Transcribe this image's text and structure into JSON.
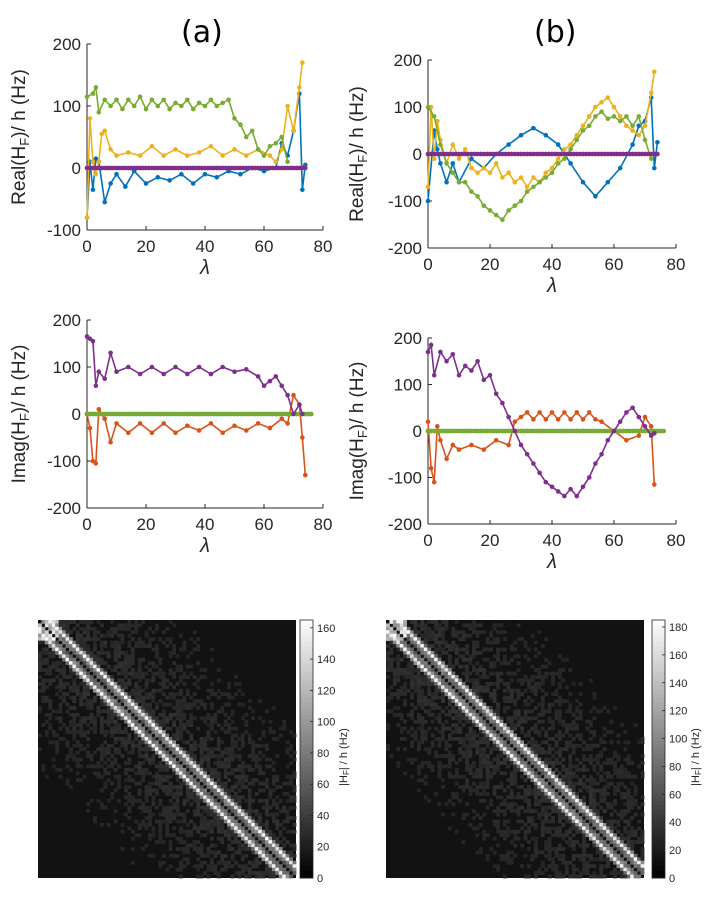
{
  "labels": {
    "a": "(a)",
    "b": "(b)"
  },
  "chart_data": [
    {
      "type": "line",
      "panel": "a-real",
      "xlabel": "λ",
      "ylabel_main": "Real(H",
      "ylabel_sub": "F",
      "ylabel_tail": ")/ h (Hz)",
      "xlim": [
        0,
        80
      ],
      "ylim": [
        -100,
        200
      ],
      "xticks": [
        0,
        20,
        40,
        60,
        80
      ],
      "yticks": [
        -100,
        0,
        100,
        200
      ],
      "series": [
        {
          "color": "#0072BD",
          "x": [
            0,
            1,
            2,
            3,
            4,
            6,
            8,
            10,
            13,
            16,
            20,
            24,
            28,
            32,
            36,
            40,
            44,
            48,
            52,
            56,
            60,
            64,
            66,
            68,
            70,
            72,
            73,
            74
          ],
          "y": [
            -80,
            10,
            -35,
            15,
            10,
            -55,
            -25,
            -10,
            -30,
            -5,
            -25,
            -15,
            -20,
            -10,
            -25,
            -10,
            -15,
            -5,
            -10,
            0,
            -5,
            0,
            40,
            20,
            60,
            120,
            -35,
            5
          ]
        },
        {
          "color": "#D95319",
          "x": [
            0,
            74
          ],
          "y": [
            0,
            0
          ]
        },
        {
          "color": "#EDB120",
          "x": [
            0,
            1,
            2,
            3,
            4,
            5,
            6,
            8,
            10,
            14,
            18,
            22,
            26,
            30,
            34,
            38,
            42,
            46,
            50,
            54,
            58,
            62,
            64,
            66,
            68,
            70,
            72,
            73
          ],
          "y": [
            -80,
            80,
            10,
            -10,
            10,
            55,
            60,
            30,
            20,
            25,
            20,
            35,
            20,
            30,
            20,
            25,
            35,
            20,
            30,
            20,
            30,
            20,
            10,
            30,
            100,
            60,
            130,
            170
          ]
        },
        {
          "color": "#77AC30",
          "x": [
            0,
            2,
            3,
            4,
            6,
            8,
            10,
            12,
            14,
            16,
            18,
            20,
            22,
            24,
            26,
            28,
            30,
            32,
            34,
            36,
            38,
            40,
            42,
            44,
            46,
            48,
            50,
            52,
            54,
            56,
            58,
            60,
            62,
            64,
            66,
            68
          ],
          "y": [
            115,
            120,
            130,
            90,
            110,
            100,
            110,
            95,
            110,
            100,
            115,
            95,
            110,
            100,
            110,
            95,
            105,
            100,
            110,
            95,
            105,
            100,
            110,
            100,
            105,
            110,
            80,
            70,
            50,
            60,
            30,
            20,
            35,
            40,
            50,
            10
          ]
        },
        {
          "color": "#7E2F8E",
          "x": [
            0,
            74
          ],
          "y": [
            0,
            0
          ]
        }
      ]
    },
    {
      "type": "line",
      "panel": "b-real",
      "xlabel": "λ",
      "ylabel_main": "Real(H",
      "ylabel_sub": "F",
      "ylabel_tail": ")/ h (Hz)",
      "xlim": [
        0,
        80
      ],
      "ylim": [
        -200,
        200
      ],
      "xticks": [
        0,
        20,
        40,
        60,
        80
      ],
      "yticks": [
        -200,
        -100,
        0,
        100,
        200
      ],
      "series": [
        {
          "color": "#0072BD",
          "x": [
            0,
            2,
            3,
            4,
            6,
            8,
            10,
            14,
            18,
            22,
            26,
            30,
            34,
            38,
            42,
            46,
            50,
            54,
            58,
            62,
            66,
            68,
            70,
            72,
            73,
            74
          ],
          "y": [
            -100,
            50,
            10,
            -20,
            -60,
            -20,
            -60,
            -10,
            -30,
            0,
            20,
            40,
            55,
            40,
            20,
            -20,
            -60,
            -90,
            -60,
            -30,
            20,
            60,
            70,
            120,
            -30,
            25
          ]
        },
        {
          "color": "#D95319",
          "x": [
            0,
            74
          ],
          "y": [
            0,
            0
          ]
        },
        {
          "color": "#EDB120",
          "x": [
            0,
            1,
            2,
            3,
            4,
            6,
            8,
            10,
            12,
            14,
            16,
            18,
            20,
            22,
            24,
            26,
            28,
            30,
            32,
            34,
            36,
            38,
            40,
            42,
            44,
            46,
            48,
            50,
            52,
            54,
            56,
            58,
            60,
            62,
            64,
            66,
            68,
            70,
            72,
            73
          ],
          "y": [
            -70,
            100,
            -10,
            70,
            30,
            -20,
            20,
            -10,
            10,
            -30,
            -40,
            -30,
            -40,
            -20,
            -50,
            -40,
            -60,
            -50,
            -70,
            -50,
            -60,
            -40,
            -30,
            -10,
            10,
            20,
            40,
            60,
            80,
            100,
            110,
            120,
            100,
            80,
            60,
            50,
            40,
            60,
            130,
            175
          ]
        },
        {
          "color": "#77AC30",
          "x": [
            0,
            2,
            4,
            6,
            8,
            10,
            12,
            14,
            16,
            18,
            20,
            22,
            24,
            26,
            28,
            30,
            32,
            34,
            36,
            38,
            40,
            42,
            44,
            46,
            48,
            50,
            52,
            54,
            56,
            58,
            60,
            62,
            64,
            66,
            68,
            70,
            72
          ],
          "y": [
            100,
            80,
            20,
            -20,
            -40,
            -60,
            -60,
            -80,
            -90,
            -110,
            -120,
            -130,
            -140,
            -120,
            -110,
            -100,
            -80,
            -70,
            -60,
            -50,
            -40,
            -20,
            -10,
            10,
            30,
            50,
            60,
            80,
            90,
            75,
            80,
            70,
            80,
            60,
            80,
            30,
            -10
          ]
        },
        {
          "color": "#7E2F8E",
          "x": [
            0,
            74
          ],
          "y": [
            0,
            0
          ]
        }
      ]
    },
    {
      "type": "line",
      "panel": "a-imag",
      "xlabel": "λ",
      "ylabel_main": "Imag(H",
      "ylabel_sub": "F",
      "ylabel_tail": ")/ h (Hz)",
      "xlim": [
        0,
        80
      ],
      "ylim": [
        -200,
        200
      ],
      "xticks": [
        0,
        20,
        40,
        60,
        80
      ],
      "yticks": [
        -200,
        -100,
        0,
        100,
        200
      ],
      "series": [
        {
          "color": "#0072BD",
          "x": [
            0,
            76
          ],
          "y": [
            0,
            0
          ]
        },
        {
          "color": "#D95319",
          "x": [
            0,
            1,
            2,
            3,
            4,
            6,
            8,
            10,
            14,
            18,
            22,
            26,
            30,
            34,
            38,
            42,
            46,
            50,
            54,
            58,
            62,
            66,
            68,
            70,
            72,
            73,
            74
          ],
          "y": [
            0,
            -30,
            -100,
            -105,
            10,
            -10,
            -60,
            -20,
            -40,
            -20,
            -40,
            -20,
            -40,
            -25,
            -35,
            -20,
            -40,
            -25,
            -35,
            -20,
            -30,
            -10,
            -20,
            40,
            20,
            -50,
            -130
          ]
        },
        {
          "color": "#77AC30",
          "x": [
            0,
            76
          ],
          "y": [
            0,
            0
          ]
        },
        {
          "color": "#7E2F8E",
          "x": [
            0,
            1,
            2,
            3,
            4,
            6,
            8,
            10,
            14,
            18,
            22,
            26,
            30,
            34,
            38,
            42,
            46,
            50,
            54,
            58,
            60,
            62,
            64,
            66,
            68,
            70,
            72,
            73
          ],
          "y": [
            165,
            160,
            155,
            60,
            90,
            75,
            130,
            90,
            100,
            85,
            100,
            85,
            100,
            85,
            100,
            85,
            100,
            90,
            95,
            80,
            60,
            70,
            80,
            60,
            40,
            0,
            20,
            0
          ]
        }
      ]
    },
    {
      "type": "line",
      "panel": "b-imag",
      "xlabel": "λ",
      "ylabel_main": "Imag(H",
      "ylabel_sub": "F",
      "ylabel_tail": ")/ h (Hz)",
      "xlim": [
        0,
        80
      ],
      "ylim": [
        -200,
        200
      ],
      "xticks": [
        0,
        20,
        40,
        60,
        80
      ],
      "yticks": [
        -200,
        -100,
        0,
        100,
        200
      ],
      "series": [
        {
          "color": "#0072BD",
          "x": [
            0,
            76
          ],
          "y": [
            0,
            0
          ]
        },
        {
          "color": "#D95319",
          "x": [
            0,
            1,
            2,
            3,
            4,
            6,
            8,
            10,
            14,
            18,
            22,
            26,
            28,
            30,
            32,
            34,
            36,
            38,
            40,
            42,
            44,
            46,
            48,
            50,
            52,
            54,
            56,
            60,
            64,
            68,
            70,
            72,
            73
          ],
          "y": [
            20,
            -80,
            -110,
            10,
            -20,
            -60,
            -30,
            -40,
            -30,
            -40,
            -20,
            -30,
            20,
            30,
            40,
            25,
            40,
            25,
            40,
            25,
            40,
            25,
            40,
            25,
            40,
            25,
            20,
            0,
            -20,
            -10,
            30,
            10,
            -115
          ]
        },
        {
          "color": "#77AC30",
          "x": [
            0,
            76
          ],
          "y": [
            0,
            0
          ]
        },
        {
          "color": "#7E2F8E",
          "x": [
            0,
            1,
            2,
            4,
            6,
            8,
            10,
            12,
            14,
            16,
            18,
            20,
            22,
            24,
            26,
            28,
            30,
            32,
            34,
            36,
            38,
            40,
            42,
            44,
            46,
            48,
            50,
            52,
            54,
            56,
            58,
            60,
            62,
            64,
            66,
            68,
            70,
            72,
            73
          ],
          "y": [
            170,
            185,
            120,
            170,
            150,
            165,
            120,
            140,
            130,
            150,
            110,
            120,
            80,
            60,
            30,
            0,
            -30,
            -50,
            -70,
            -90,
            -110,
            -120,
            -130,
            -140,
            -125,
            -140,
            -120,
            -100,
            -70,
            -50,
            -20,
            0,
            20,
            40,
            50,
            30,
            10,
            -10,
            -5
          ]
        }
      ]
    },
    {
      "type": "heatmap",
      "panel": "a-map",
      "colorbar_label_main": "|H",
      "colorbar_label_sub": "F",
      "colorbar_label_tail": "| / h (Hz)",
      "colorbar_range": [
        0,
        165
      ],
      "colorbar_ticks": [
        0,
        20,
        40,
        60,
        80,
        100,
        120,
        140,
        160
      ],
      "size": 75
    },
    {
      "type": "heatmap",
      "panel": "b-map",
      "colorbar_label_main": "|H",
      "colorbar_label_sub": "F",
      "colorbar_label_tail": "| / h (Hz)",
      "colorbar_range": [
        0,
        185
      ],
      "colorbar_ticks": [
        0,
        20,
        40,
        60,
        80,
        100,
        120,
        140,
        160,
        180
      ],
      "size": 75
    }
  ]
}
